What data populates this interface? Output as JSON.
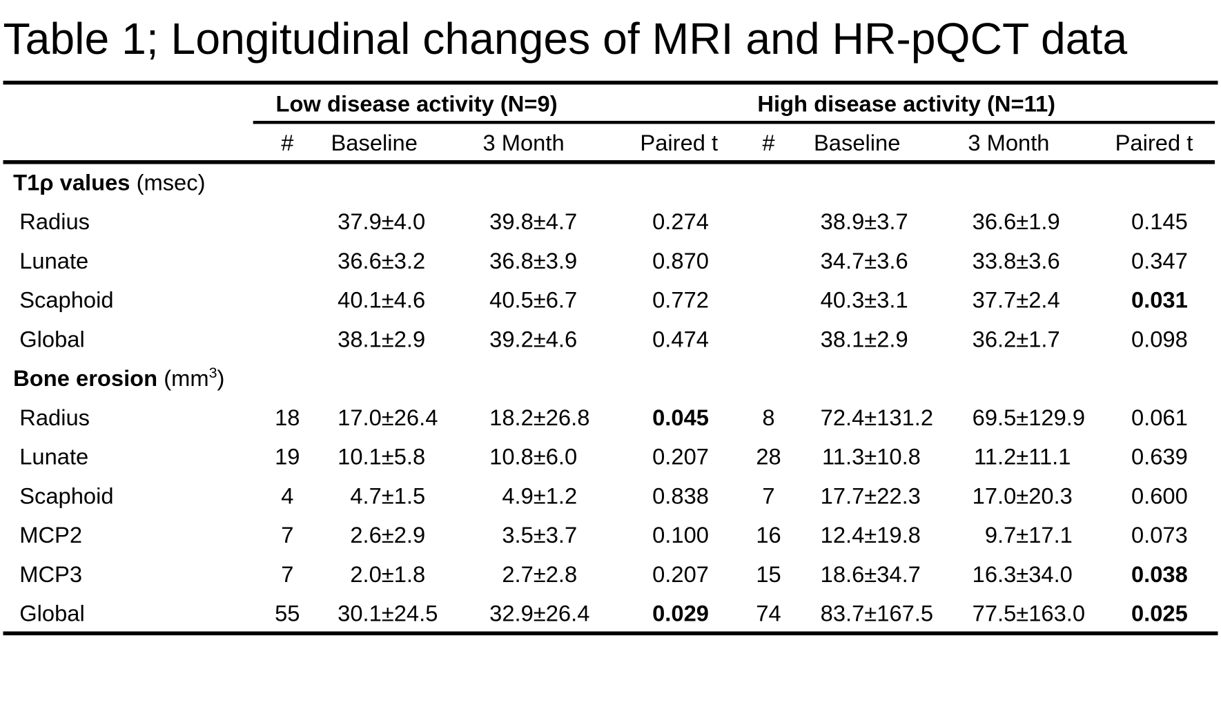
{
  "title": "Table 1; Longitudinal changes of MRI and HR-pQCT data",
  "groups": [
    "Low disease activity (N=9)",
    "High disease activity (N=11)"
  ],
  "columns": [
    "#",
    "Baseline",
    "3 Month",
    "Paired t",
    "#",
    "Baseline",
    "3 Month",
    "Paired t"
  ],
  "sections": [
    {
      "name": "T1ρ values",
      "unit": [
        "(msec)"
      ],
      "rows": [
        {
          "cells": [
            "Radius",
            null,
            "37.9±4.0",
            "39.8±4.7",
            "0.274",
            null,
            "38.9±3.7",
            "36.6±1.9",
            "0.145"
          ],
          "bold": []
        },
        {
          "cells": [
            "Lunate",
            null,
            "36.6±3.2",
            "36.8±3.9",
            "0.870",
            null,
            "34.7±3.6",
            "33.8±3.6",
            "0.347"
          ],
          "bold": []
        },
        {
          "cells": [
            "Scaphoid",
            null,
            "40.1±4.6",
            "40.5±6.7",
            "0.772",
            null,
            "40.3±3.1",
            "37.7±2.4",
            "0.031"
          ],
          "bold": [
            8
          ]
        },
        {
          "cells": [
            "Global",
            null,
            "38.1±2.9",
            "39.2±4.6",
            "0.474",
            null,
            "38.1±2.9",
            "36.2±1.7",
            "0.098"
          ],
          "bold": []
        }
      ]
    },
    {
      "name": "Bone erosion",
      "unit": [
        "(mm",
        "3",
        ")"
      ],
      "rows": [
        {
          "cells": [
            "Radius",
            "18",
            "17.0±26.4",
            "18.2±26.8",
            "0.045",
            "8",
            "72.4±131.2",
            "69.5±129.9",
            "0.061"
          ],
          "bold": [
            4
          ]
        },
        {
          "cells": [
            "Lunate",
            "19",
            "10.1±5.8",
            "10.8±6.0",
            "0.207",
            "28",
            "11.3±10.8",
            "11.2±11.1",
            "0.639"
          ],
          "bold": []
        },
        {
          "cells": [
            "Scaphoid",
            "4",
            "4.7±1.5",
            "4.9±1.2",
            "0.838",
            "7",
            "17.7±22.3",
            "17.0±20.3",
            "0.600"
          ],
          "bold": []
        },
        {
          "cells": [
            "MCP2",
            "7",
            "2.6±2.9",
            "3.5±3.7",
            "0.100",
            "16",
            "12.4±19.8",
            "9.7±17.1",
            "0.073"
          ],
          "bold": []
        },
        {
          "cells": [
            "MCP3",
            "7",
            "2.0±1.8",
            "2.7±2.8",
            "0.207",
            "15",
            "18.6±34.7",
            "16.3±34.0",
            "0.038"
          ],
          "bold": [
            8
          ]
        },
        {
          "cells": [
            "Global",
            "55",
            "30.1±24.5",
            "32.9±26.4",
            "0.029",
            "74",
            "83.7±167.5",
            "77.5±163.0",
            "0.025"
          ],
          "bold": [
            4,
            8
          ]
        }
      ]
    }
  ]
}
